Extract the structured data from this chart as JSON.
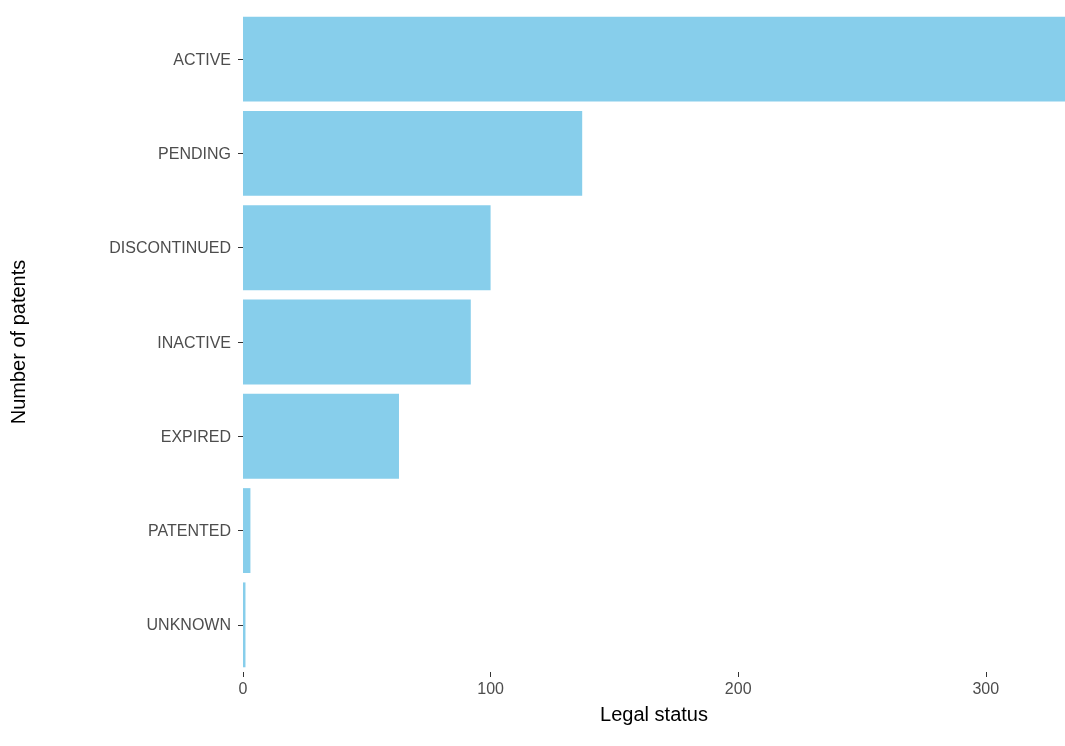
{
  "chart_data": {
    "type": "bar",
    "orientation": "horizontal",
    "xlabel": "Legal status",
    "ylabel": "Number of patents",
    "categories": [
      "ACTIVE",
      "PENDING",
      "DISCONTINUED",
      "INACTIVE",
      "EXPIRED",
      "PATENTED",
      "UNKNOWN"
    ],
    "values": [
      332,
      137,
      100,
      92,
      63,
      3,
      1
    ],
    "color": "#87ceeb",
    "xlim": [
      0,
      332
    ],
    "xticks": [
      0,
      100,
      200,
      300
    ],
    "grid": false
  }
}
